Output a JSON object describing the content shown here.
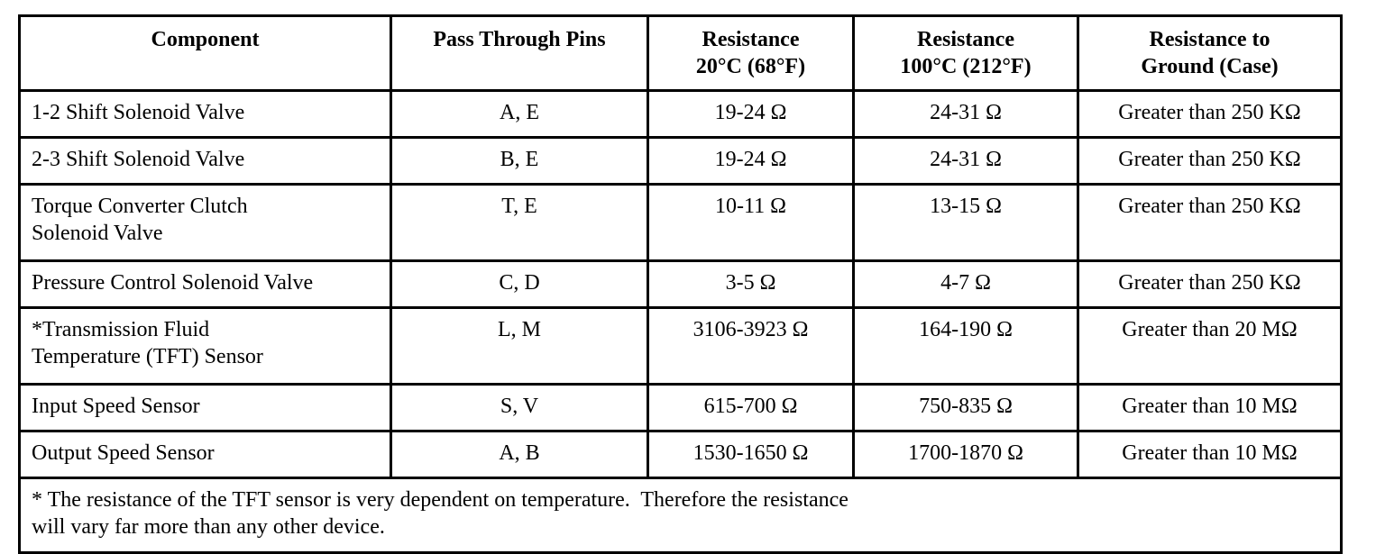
{
  "table": {
    "headers": [
      [
        "Component"
      ],
      [
        "Pass Through Pins"
      ],
      [
        "Resistance",
        "20°C (68°F)"
      ],
      [
        "Resistance",
        "100°C (212°F)"
      ],
      [
        "Resistance to",
        "Ground (Case)"
      ]
    ],
    "rows": [
      [
        [
          "1-2 Shift Solenoid Valve"
        ],
        [
          "A, E"
        ],
        [
          "19-24 Ω"
        ],
        [
          "24-31 Ω"
        ],
        [
          "Greater than 250 KΩ"
        ]
      ],
      [
        [
          "2-3 Shift Solenoid Valve"
        ],
        [
          "B, E"
        ],
        [
          "19-24 Ω"
        ],
        [
          "24-31 Ω"
        ],
        [
          "Greater than 250 KΩ"
        ]
      ],
      [
        [
          "Torque Converter Clutch",
          "Solenoid Valve"
        ],
        [
          "T, E"
        ],
        [
          "10-11 Ω"
        ],
        [
          "13-15 Ω"
        ],
        [
          "Greater than 250 KΩ"
        ]
      ],
      [
        [
          "Pressure Control Solenoid Valve"
        ],
        [
          "C, D"
        ],
        [
          "3-5 Ω"
        ],
        [
          "4-7 Ω"
        ],
        [
          "Greater than 250 KΩ"
        ]
      ],
      [
        [
          "*Transmission Fluid",
          "Temperature (TFT) Sensor"
        ],
        [
          "L, M"
        ],
        [
          "3106-3923 Ω"
        ],
        [
          "164-190 Ω"
        ],
        [
          "Greater than 20 MΩ"
        ]
      ],
      [
        [
          "Input Speed Sensor"
        ],
        [
          "S, V"
        ],
        [
          "615-700 Ω"
        ],
        [
          "750-835 Ω"
        ],
        [
          "Greater than 10 MΩ"
        ]
      ],
      [
        [
          "Output Speed Sensor"
        ],
        [
          "A, B"
        ],
        [
          "1530-1650 Ω"
        ],
        [
          "1700-1870 Ω"
        ],
        [
          "Greater than 10 MΩ"
        ]
      ]
    ],
    "footnote": [
      "* The resistance of the TFT sensor is very dependent on temperature.  Therefore the resistance",
      "will vary far more than any other device."
    ]
  }
}
